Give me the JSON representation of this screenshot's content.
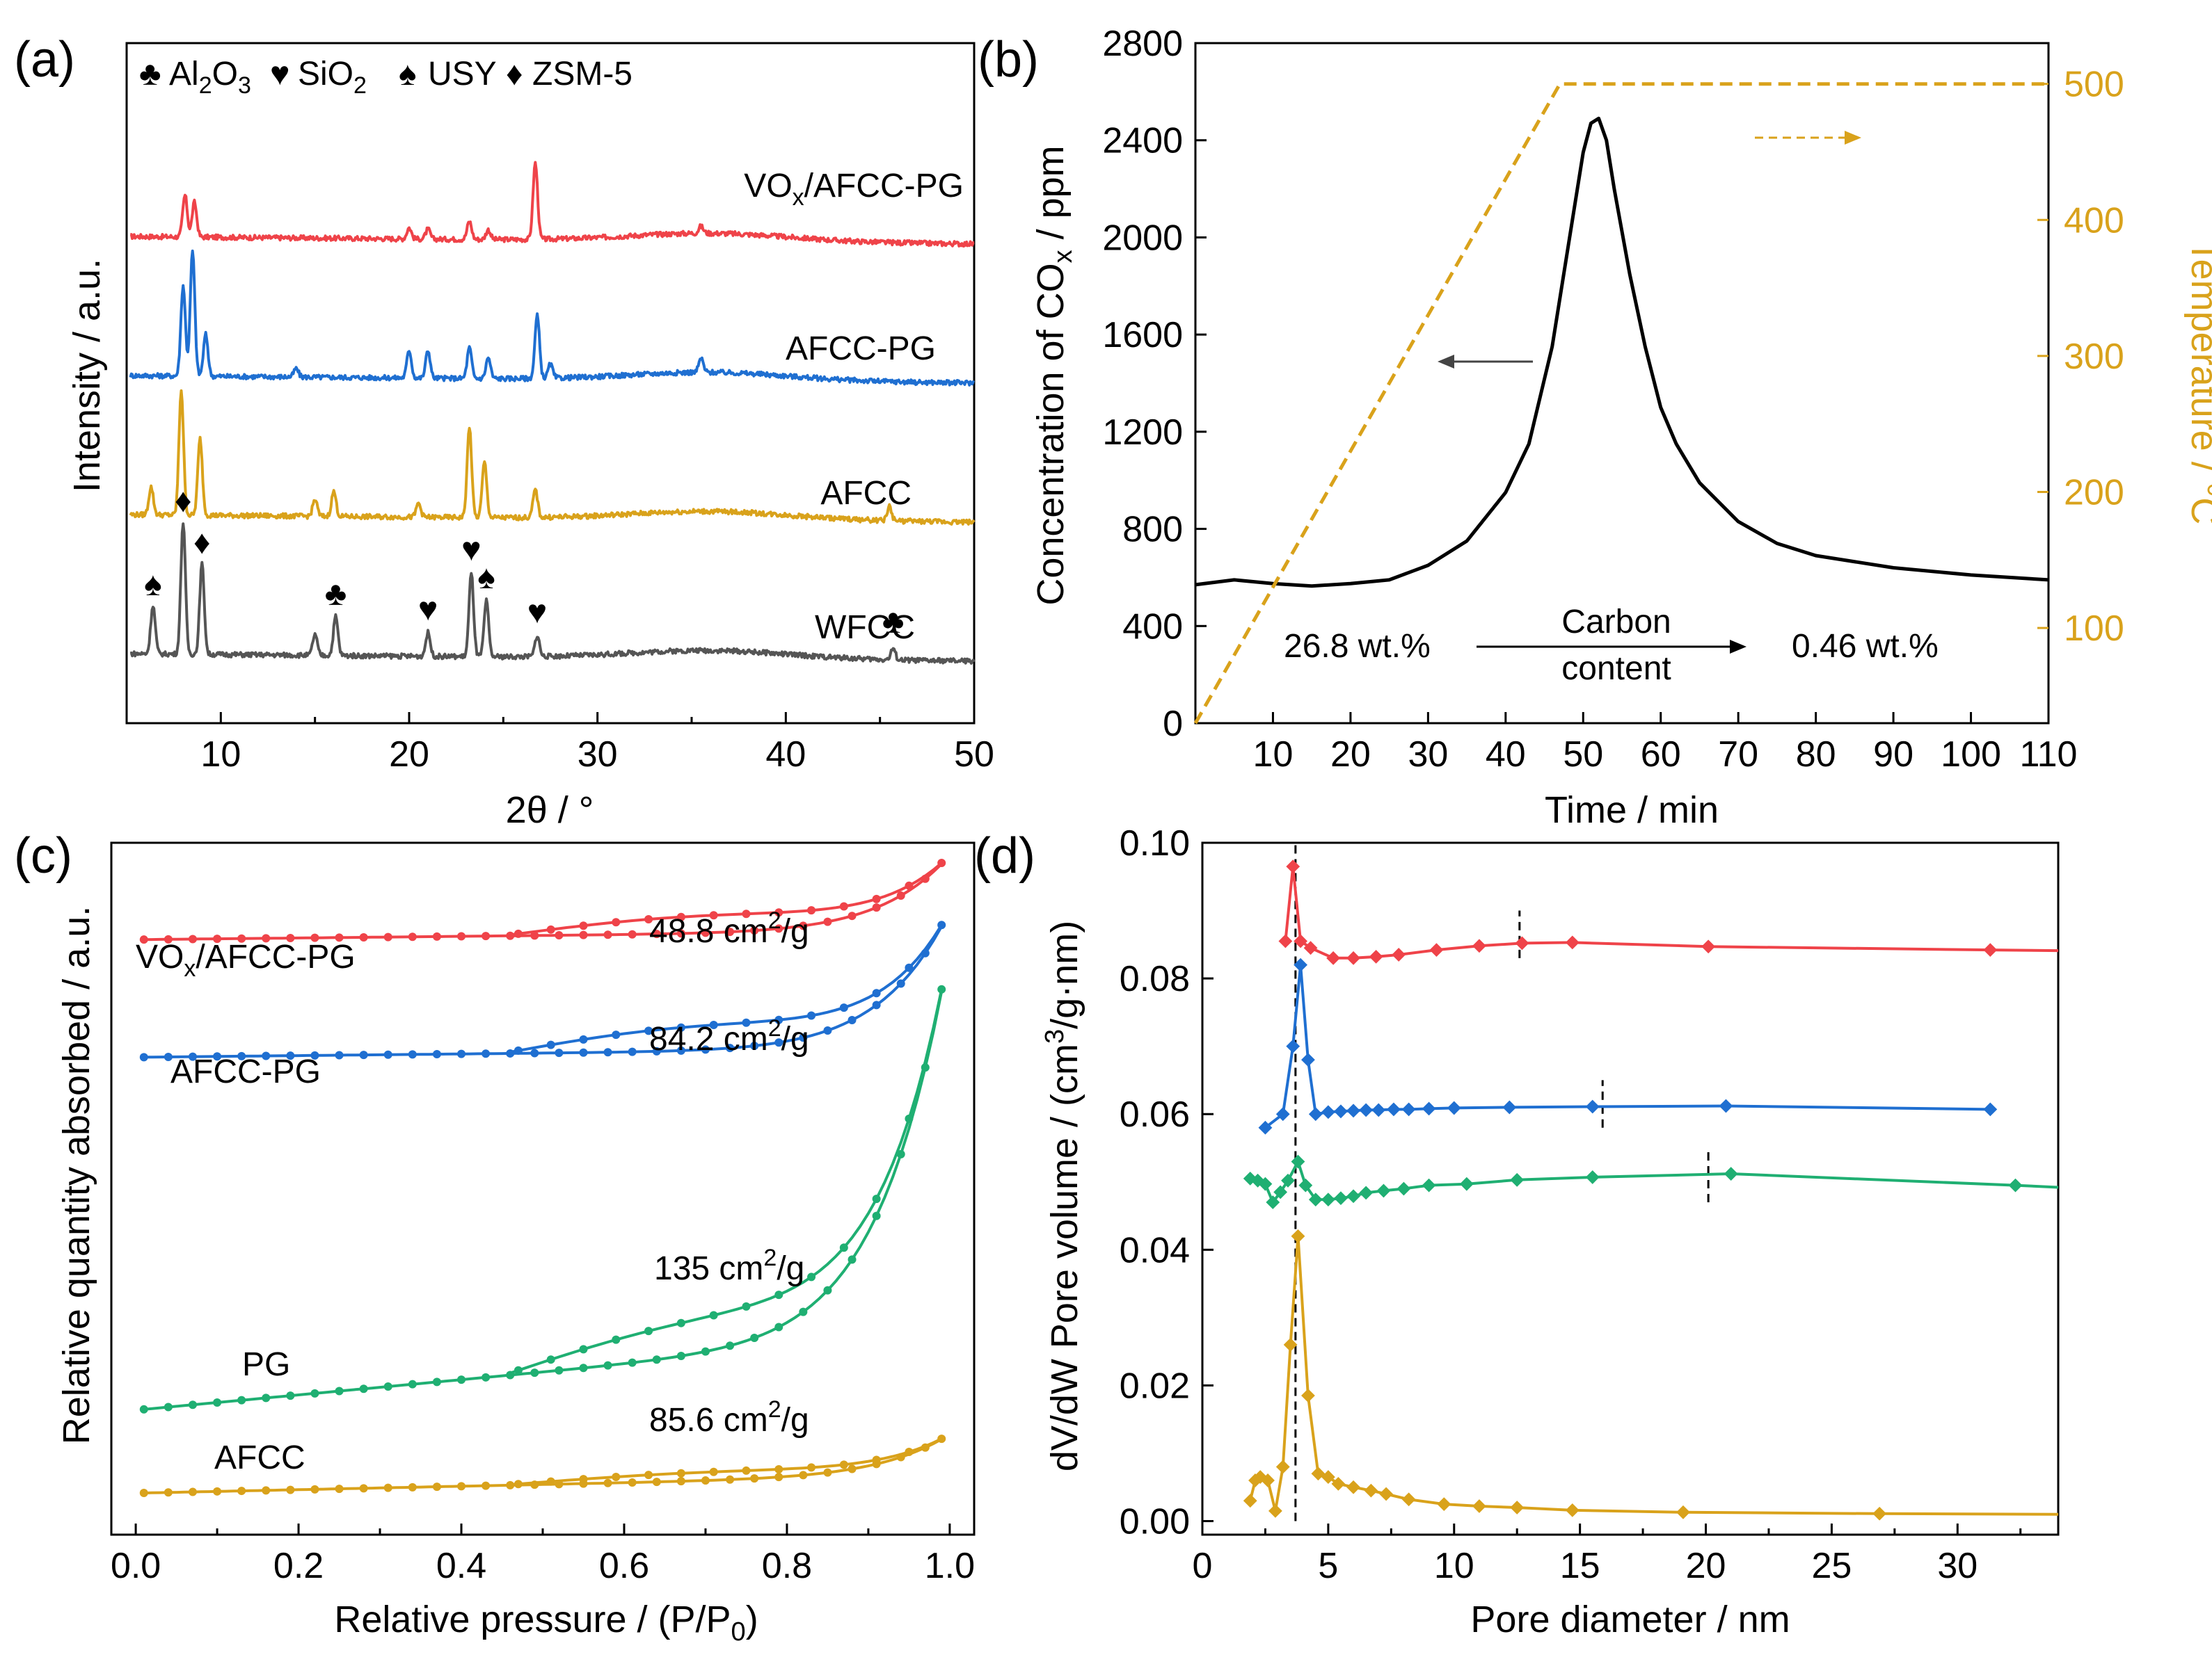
{
  "colors": {
    "red": "#ef4349",
    "blue": "#1f6fd1",
    "gold": "#d9a21b",
    "green": "#1faf72",
    "gray": "#555555",
    "black": "#000000"
  },
  "panels": {
    "a": {
      "label": "(a)",
      "xlabel": "2θ / °",
      "ylabel": "Intensity / a.u.",
      "legend_items": [
        {
          "symbol": "♣",
          "text": "Al₂O₃"
        },
        {
          "symbol": "♥",
          "text": "SiO₂"
        },
        {
          "symbol": "♠",
          "text": "USY"
        },
        {
          "symbol": "♦",
          "text": "ZSM-5"
        }
      ],
      "series_labels": [
        "VOx/AFCC-PG",
        "AFCC-PG",
        "AFCC",
        "WFCC"
      ],
      "peak_markers": [
        {
          "symbol": "♠",
          "x": 6.4
        },
        {
          "symbol": "♦",
          "x": 8.0
        },
        {
          "symbol": "♦",
          "x": 9.0
        },
        {
          "symbol": "♣",
          "x": 16.1
        },
        {
          "symbol": "♥",
          "x": 21.0
        },
        {
          "symbol": "♥",
          "x": 23.3
        },
        {
          "symbol": "♠",
          "x": 24.1
        },
        {
          "symbol": "♥",
          "x": 26.8
        },
        {
          "symbol": "♣",
          "x": 45.7
        }
      ]
    },
    "b": {
      "label": "(b)",
      "xlabel": "Time / min",
      "ylabel_left": "Concentration of COx / ppm",
      "ylabel_right": "Temperature / °C",
      "ann_left": "26.8 wt.%",
      "ann_mid_1": "Carbon",
      "ann_mid_2": "content",
      "ann_right": "0.46 wt.%"
    },
    "c": {
      "label": "(c)",
      "xlabel": "Relative pressure / (P/P₀)",
      "ylabel": "Relative quantity absorbed / a.u.",
      "curve_labels": [
        "VOx/AFCC-PG",
        "AFCC-PG",
        "PG",
        "AFCC"
      ],
      "surface_areas": [
        "48.8 cm²/g",
        "84.2 cm²/g",
        "135 cm²/g",
        "85.6 cm²/g"
      ]
    },
    "d": {
      "label": "(d)",
      "xlabel": "Pore diameter / nm",
      "ylabel": "dV/dW Pore volume / (cm³/g·nm)"
    }
  },
  "chart_data": [
    {
      "panel": "a",
      "type": "line",
      "title": "",
      "xlabel": "2θ / °",
      "ylabel": "Intensity / a.u.",
      "xlim": [
        5,
        50
      ],
      "xticks": [
        10,
        20,
        30,
        40,
        50
      ],
      "series": [
        {
          "name": "VOx/AFCC-PG",
          "color": "#ef4349",
          "offset": 3.3,
          "peaks": [
            [
              8.1,
              0.3
            ],
            [
              8.6,
              0.25
            ],
            [
              20.0,
              0.08
            ],
            [
              21.0,
              0.07
            ],
            [
              23.2,
              0.13
            ],
            [
              24.2,
              0.07
            ],
            [
              26.7,
              0.55
            ],
            [
              35.5,
              0.05
            ]
          ]
        },
        {
          "name": "AFCC-PG",
          "color": "#1f6fd1",
          "offset": 2.3,
          "peaks": [
            [
              8.0,
              0.65
            ],
            [
              8.5,
              0.9
            ],
            [
              9.2,
              0.3
            ],
            [
              14.0,
              0.06
            ],
            [
              20.0,
              0.2
            ],
            [
              21.0,
              0.2
            ],
            [
              23.2,
              0.22
            ],
            [
              24.2,
              0.15
            ],
            [
              26.8,
              0.45
            ],
            [
              27.5,
              0.1
            ],
            [
              35.5,
              0.1
            ]
          ]
        },
        {
          "name": "AFCC",
          "color": "#d9a21b",
          "offset": 1.3,
          "peaks": [
            [
              6.3,
              0.2
            ],
            [
              7.9,
              0.9
            ],
            [
              8.9,
              0.55
            ],
            [
              15.0,
              0.12
            ],
            [
              16.0,
              0.18
            ],
            [
              20.5,
              0.1
            ],
            [
              23.2,
              0.65
            ],
            [
              24.0,
              0.4
            ],
            [
              26.7,
              0.2
            ],
            [
              45.5,
              0.1
            ]
          ]
        },
        {
          "name": "WFCC",
          "color": "#555555",
          "offset": 0.3,
          "peaks": [
            [
              6.4,
              0.35
            ],
            [
              8.0,
              0.95
            ],
            [
              9.0,
              0.65
            ],
            [
              15.0,
              0.15
            ],
            [
              16.1,
              0.28
            ],
            [
              21.0,
              0.17
            ],
            [
              23.3,
              0.6
            ],
            [
              24.1,
              0.4
            ],
            [
              26.8,
              0.15
            ],
            [
              45.7,
              0.08
            ]
          ]
        }
      ]
    },
    {
      "panel": "b",
      "type": "line",
      "title": "",
      "xlabel": "Time / min",
      "ylabel": "Concentration of COx / ppm",
      "ylabel_right": "Temperature / °C",
      "xlim": [
        0,
        110
      ],
      "ylim": [
        0,
        2800
      ],
      "ylim_right": [
        30,
        530
      ],
      "xticks": [
        10,
        20,
        30,
        40,
        50,
        60,
        70,
        80,
        90,
        100,
        110
      ],
      "yticks": [
        0,
        400,
        800,
        1200,
        1600,
        2000,
        2400,
        2800
      ],
      "yticks_right": [
        100,
        200,
        300,
        400,
        500
      ],
      "series": [
        {
          "name": "COx concentration",
          "axis": "left",
          "color": "#000000",
          "x": [
            0,
            5,
            10,
            15,
            20,
            25,
            30,
            35,
            40,
            43,
            46,
            48,
            50,
            51,
            52,
            53,
            54,
            56,
            58,
            60,
            62,
            65,
            70,
            75,
            80,
            90,
            100,
            110
          ],
          "y": [
            570,
            590,
            575,
            565,
            575,
            590,
            650,
            750,
            950,
            1150,
            1550,
            1950,
            2350,
            2470,
            2490,
            2400,
            2200,
            1850,
            1550,
            1300,
            1150,
            990,
            830,
            740,
            690,
            640,
            610,
            590
          ]
        },
        {
          "name": "Temperature",
          "axis": "right",
          "color": "#d9a21b",
          "dashed": true,
          "x": [
            0,
            47,
            110
          ],
          "y": [
            30,
            500,
            500
          ]
        }
      ]
    },
    {
      "panel": "c",
      "type": "line",
      "title": "",
      "xlabel": "Relative pressure / (P/P0)",
      "ylabel": "Relative quantity absorbed / a.u.",
      "xlim": [
        -0.03,
        1.03
      ],
      "ylim": [
        0,
        10
      ],
      "xticks": [
        0.0,
        0.2,
        0.4,
        0.6,
        0.8,
        1.0
      ],
      "series": [
        {
          "name": "VOx/AFCC-PG",
          "color": "#ef4349",
          "base": 8.6,
          "rise": 1.1,
          "loop": 0.25,
          "marker": "circle"
        },
        {
          "name": "AFCC-PG",
          "color": "#1f6fd1",
          "base": 6.9,
          "rise": 2.0,
          "loop": 0.35,
          "marker": "circle"
        },
        {
          "name": "PG",
          "color": "#1faf72",
          "base": 1.8,
          "rise": 5.6,
          "loop": 0.5,
          "marker": "circle"
        },
        {
          "name": "AFCC",
          "color": "#d9a21b",
          "base": 0.6,
          "rise": 0.6,
          "loop": 0.12,
          "marker": "circle"
        }
      ]
    },
    {
      "panel": "d",
      "type": "line",
      "title": "",
      "xlabel": "Pore diameter / nm",
      "ylabel": "dV/dW Pore volume / (cm3/g·nm)",
      "xlim": [
        0,
        34
      ],
      "ylim": [
        -0.002,
        0.1
      ],
      "xticks": [
        0,
        5,
        10,
        15,
        20,
        25,
        30
      ],
      "yticks": [
        0.0,
        0.02,
        0.04,
        0.06,
        0.08,
        0.1
      ],
      "dashed_markers": [
        {
          "x": 3.7,
          "y0": 0.0,
          "y1": 0.1
        },
        {
          "x": 12.6,
          "y0": 0.083,
          "y1": 0.09
        },
        {
          "x": 15.9,
          "y0": 0.058,
          "y1": 0.065
        },
        {
          "x": 20.1,
          "y0": 0.047,
          "y1": 0.055
        }
      ],
      "series": [
        {
          "name": "VOx/AFCC-PG",
          "color": "#ef4349",
          "x": [
            3.3,
            3.6,
            3.9,
            4.3,
            5.2,
            6.0,
            6.9,
            7.8,
            9.3,
            11.0,
            12.7,
            14.7,
            20.1,
            31.3,
            34.0
          ],
          "y": [
            0.0855,
            0.0965,
            0.0855,
            0.0845,
            0.083,
            0.083,
            0.0832,
            0.0835,
            0.0842,
            0.0848,
            0.0852,
            0.0853,
            0.0847,
            0.0842,
            0.0841
          ]
        },
        {
          "name": "AFCC-PG",
          "color": "#1f6fd1",
          "x": [
            2.5,
            3.2,
            3.6,
            3.9,
            4.2,
            4.5,
            5.0,
            5.5,
            6.0,
            6.5,
            7.0,
            7.6,
            8.2,
            9.0,
            10.0,
            12.2,
            15.5,
            20.8,
            31.3
          ],
          "y": [
            0.058,
            0.06,
            0.07,
            0.082,
            0.068,
            0.06,
            0.0603,
            0.0604,
            0.0605,
            0.0606,
            0.0606,
            0.0607,
            0.0607,
            0.0608,
            0.0609,
            0.061,
            0.0611,
            0.0612,
            0.0607
          ]
        },
        {
          "name": "PG",
          "color": "#1faf72",
          "x": [
            1.9,
            2.2,
            2.5,
            2.8,
            3.1,
            3.4,
            3.8,
            4.1,
            4.5,
            5.0,
            5.5,
            6.0,
            6.5,
            7.2,
            8.0,
            9.0,
            10.5,
            12.5,
            15.5,
            21.0,
            32.3,
            34.0
          ],
          "y": [
            0.0505,
            0.0502,
            0.0497,
            0.047,
            0.0485,
            0.0502,
            0.053,
            0.0495,
            0.0474,
            0.0474,
            0.0476,
            0.0479,
            0.0484,
            0.0487,
            0.049,
            0.0495,
            0.0497,
            0.0503,
            0.0507,
            0.0512,
            0.0495,
            0.0492
          ]
        },
        {
          "name": "AFCC",
          "color": "#d9a21b",
          "x": [
            1.9,
            2.1,
            2.3,
            2.6,
            2.9,
            3.2,
            3.5,
            3.8,
            4.2,
            4.6,
            5.0,
            5.4,
            6.0,
            6.7,
            7.3,
            8.2,
            9.6,
            11.0,
            12.5,
            14.7,
            19.1,
            26.9,
            34.0
          ],
          "y": [
            0.003,
            0.006,
            0.0065,
            0.006,
            0.0015,
            0.008,
            0.026,
            0.042,
            0.0185,
            0.007,
            0.0065,
            0.0055,
            0.005,
            0.0045,
            0.004,
            0.0032,
            0.0025,
            0.0022,
            0.002,
            0.0016,
            0.0013,
            0.0011,
            0.001
          ]
        }
      ]
    }
  ]
}
